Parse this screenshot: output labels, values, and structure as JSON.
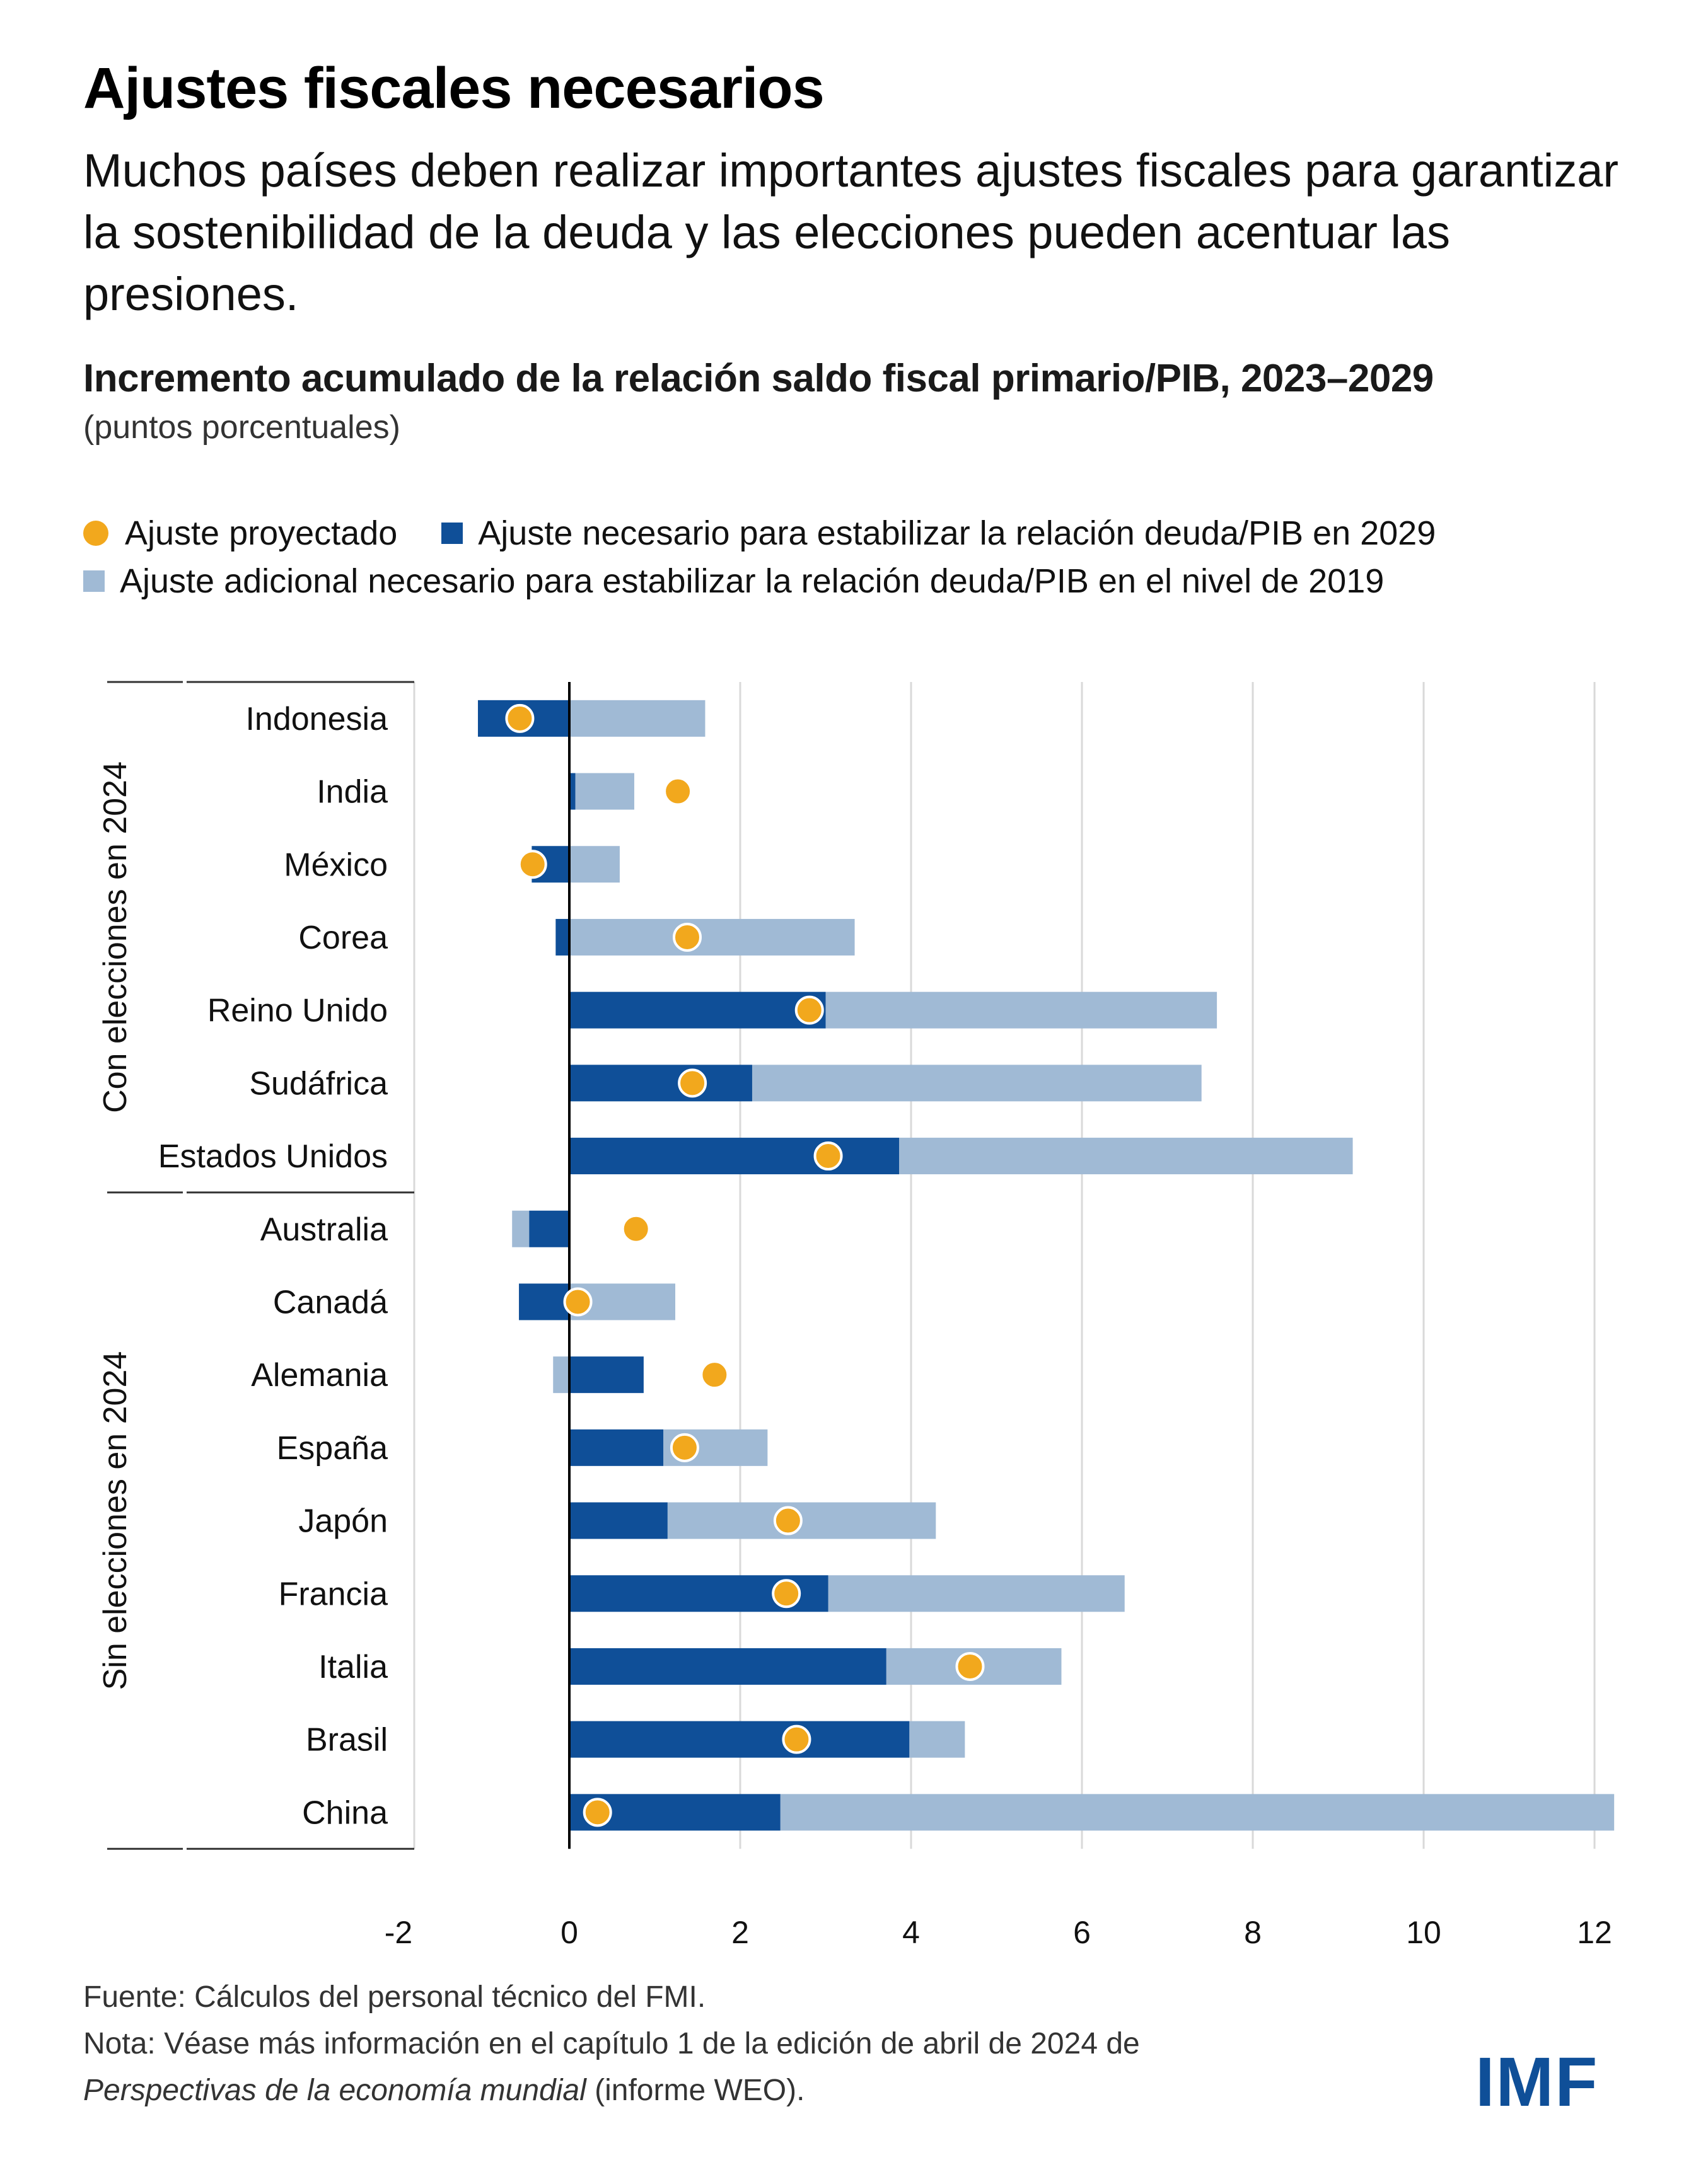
{
  "header": {
    "title": "Ajustes fiscales necesarios",
    "subtitle": "Muchos países deben realizar importantes ajustes fiscales para garantizar la sostenibilidad de la deuda y las elecciones pueden acentuar las presiones."
  },
  "colors": {
    "projected": "#f2a81d",
    "needed_2029": "#0f4f98",
    "additional_2019": "#a0bad5",
    "grid": "#d9d9d9",
    "logo": "#0f4f98"
  },
  "chart_data": {
    "type": "bar",
    "orientation": "horizontal",
    "stacked": true,
    "title": "Incremento acumulado de la relación saldo fiscal primario/PIB, 2023–2029",
    "units": "(puntos porcentuales)",
    "xlabel": "",
    "ylabel": "",
    "xlim": [
      -2,
      12
    ],
    "xticks": [
      -2,
      0,
      2,
      4,
      6,
      8,
      10,
      12
    ],
    "xtick_labels": [
      "-2",
      "0",
      "2",
      "4",
      "6",
      "8",
      "10",
      "12"
    ],
    "grid": true,
    "legend_position": "top-left",
    "legend": [
      {
        "key": "projected",
        "label": "Ajuste proyectado",
        "marker": "dot"
      },
      {
        "key": "needed_2029",
        "label": "Ajuste necesario para estabilizar la relación deuda/PIB en 2029",
        "marker": "square"
      },
      {
        "key": "additional_2019",
        "label": "Ajuste adicional necesario para estabilizar la relación deuda/PIB en el nivel de 2019",
        "marker": "square"
      }
    ],
    "groups": [
      {
        "label": "Con elecciones en 2024",
        "categories": [
          "Indonesia",
          "India",
          "México",
          "Corea",
          "Reino Unido",
          "Sudáfrica",
          "Estados Unidos"
        ]
      },
      {
        "label": "Sin elecciones en 2024",
        "categories": [
          "Australia",
          "Canadá",
          "Alemania",
          "España",
          "Japón",
          "Francia",
          "Italia",
          "Brasil",
          "China"
        ]
      }
    ],
    "categories": [
      "Indonesia",
      "India",
      "México",
      "Corea",
      "Reino Unido",
      "Sudáfrica",
      "Estados Unidos",
      "Australia",
      "Canadá",
      "Alemania",
      "España",
      "Japón",
      "Francia",
      "Italia",
      "Brasil",
      "China"
    ],
    "series": [
      {
        "name": "Ajuste necesario para estabilizar la relación deuda/PIB en 2029",
        "key": "needed_2029",
        "values": [
          -1.07,
          0.07,
          -0.44,
          -0.16,
          3.0,
          2.14,
          3.86,
          -0.47,
          -0.59,
          0.87,
          1.1,
          1.15,
          3.03,
          3.71,
          3.98,
          2.47
        ]
      },
      {
        "name": "Ajuste adicional necesario para estabilizar la relación deuda/PIB en el nivel de 2019",
        "key": "additional_2019",
        "values": [
          1.59,
          0.69,
          0.59,
          3.34,
          4.58,
          5.26,
          5.31,
          -0.2,
          1.24,
          -0.19,
          1.22,
          3.14,
          3.47,
          2.05,
          0.65,
          9.76
        ]
      },
      {
        "name": "Ajuste proyectado",
        "key": "projected",
        "values": [
          -0.58,
          1.27,
          -0.43,
          1.38,
          2.81,
          1.44,
          3.03,
          0.78,
          0.1,
          1.7,
          1.35,
          2.56,
          2.54,
          4.69,
          2.66,
          0.33
        ]
      }
    ],
    "additional_segment_ranges": [
      [
        0,
        1.59
      ],
      [
        0.07,
        0.76
      ],
      [
        0,
        0.59
      ],
      [
        0,
        3.34
      ],
      [
        3.0,
        7.58
      ],
      [
        2.14,
        7.4
      ],
      [
        3.86,
        9.17
      ],
      [
        -0.67,
        -0.47
      ],
      [
        0,
        1.24
      ],
      [
        -0.19,
        0
      ],
      [
        1.1,
        2.32
      ],
      [
        1.15,
        4.29
      ],
      [
        3.03,
        6.5
      ],
      [
        3.71,
        5.76
      ],
      [
        3.98,
        4.63
      ],
      [
        2.47,
        12.23
      ]
    ]
  },
  "footer": {
    "source": "Fuente: Cálculos del personal técnico del FMI.",
    "note_prefix": "Nota: Véase más información en el capítulo 1 de la edición de abril de 2024 de",
    "note_italic": "Perspectivas de la economía mundial",
    "note_suffix": " (informe WEO).",
    "logo": "IMF"
  }
}
